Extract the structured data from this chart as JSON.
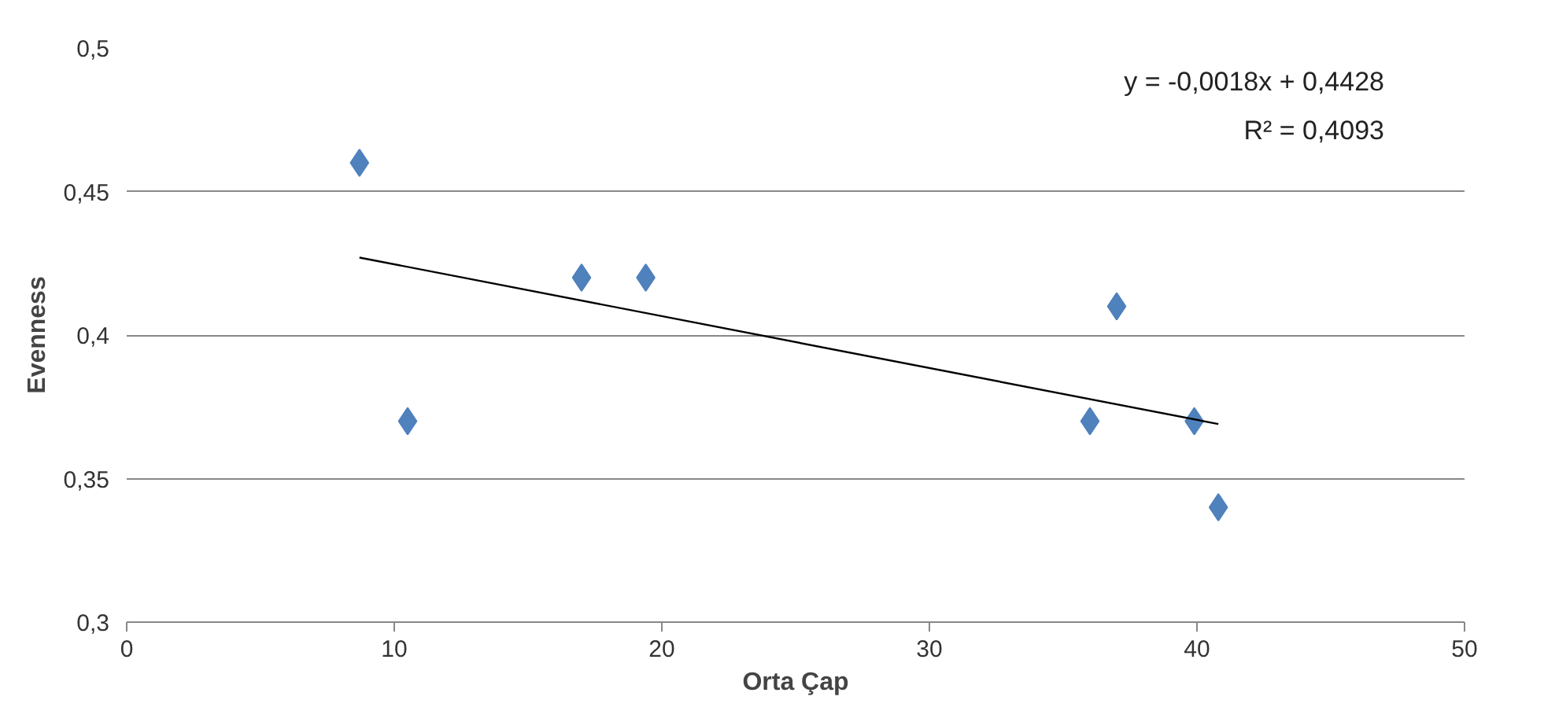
{
  "chart_data": {
    "type": "scatter",
    "xlabel": "Orta Çap",
    "ylabel": "Evenness",
    "series": [
      {
        "color": "#4f81bd",
        "marker": "diamond",
        "x": [
          8.7,
          10.5,
          17,
          19.4,
          36,
          37,
          39.9,
          40.8
        ],
        "values": [
          0.46,
          0.37,
          0.42,
          0.42,
          0.37,
          0.41,
          0.37,
          0.34
        ]
      },
      {
        "type": "line",
        "color": "#000000",
        "marker": "none",
        "x": [
          8.7,
          40.8
        ],
        "values": [
          0.427,
          0.369
        ]
      }
    ],
    "xlim": [
      0,
      50
    ],
    "xticks": [
      0,
      10,
      20,
      30,
      40,
      50
    ],
    "ylim": [
      0.3,
      0.5
    ],
    "yticks": [
      {
        "value": 0.3,
        "label": "0,3"
      },
      {
        "value": 0.35,
        "label": "0,35"
      },
      {
        "value": 0.4,
        "label": "0,4"
      },
      {
        "value": 0.45,
        "label": "0,45"
      },
      {
        "value": 0.5,
        "label": "0,5"
      }
    ],
    "grid": "y",
    "annotations": [
      "y = -0,0018x + 0,4428",
      "R² = 0,4093"
    ]
  }
}
